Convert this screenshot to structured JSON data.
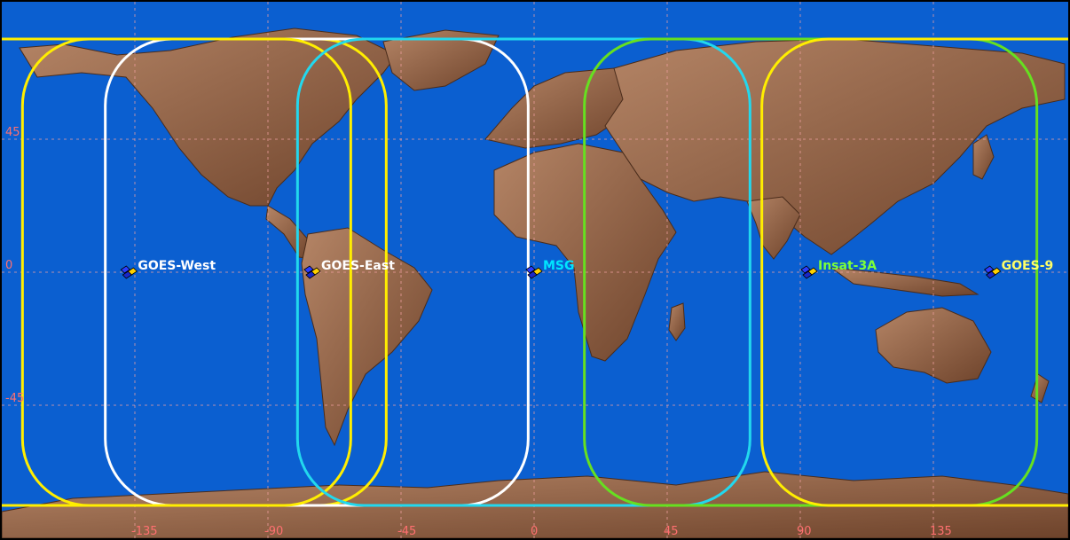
{
  "map": {
    "colors": {
      "ocean": "#0b5fd0",
      "land": "#8a5a3c",
      "land_light": "#b08060",
      "grid": "#f0a0a0",
      "axis_label": "#ff7070"
    },
    "longitude_ticks": [
      {
        "value": -135,
        "label": "-135"
      },
      {
        "value": -90,
        "label": "-90"
      },
      {
        "value": -45,
        "label": "-45"
      },
      {
        "value": 0,
        "label": "0"
      },
      {
        "value": 45,
        "label": "45"
      },
      {
        "value": 90,
        "label": "90"
      },
      {
        "value": 135,
        "label": "135"
      }
    ],
    "latitude_ticks": [
      {
        "value": 45,
        "label": "45"
      },
      {
        "value": 0,
        "label": "0"
      },
      {
        "value": -45,
        "label": "-45"
      }
    ]
  },
  "satellites": [
    {
      "id": "goes-west",
      "name": "GOES-West",
      "lon": -137,
      "color": "#ffffff"
    },
    {
      "id": "goes-east",
      "name": "GOES-East",
      "lon": -75,
      "color": "#ffffff"
    },
    {
      "id": "msg",
      "name": "MSG",
      "lon": 0,
      "color": "#00e5ff"
    },
    {
      "id": "insat-3a",
      "name": "Insat-3A",
      "lon": 93,
      "color": "#7cff3a"
    },
    {
      "id": "goes-9",
      "name": "GOES-9",
      "lon": 155,
      "color": "#ffff66"
    }
  ],
  "coverage_footprints": [
    {
      "satellite": "goes-west-yellow",
      "color": "#ffee00",
      "lon_min": -205,
      "lon_max": -50
    },
    {
      "satellite": "goes-west-white",
      "color": "#ffffff",
      "lon_min": -145,
      "lon_max": -2
    },
    {
      "satellite": "goes-east",
      "color": "#ffee00",
      "lon_min": -173,
      "lon_max": -62
    },
    {
      "satellite": "msg",
      "color": "#22d8ee",
      "lon_min": -80,
      "lon_max": 73
    },
    {
      "satellite": "insat-3a",
      "color": "#66e020",
      "lon_min": 17,
      "lon_max": 170
    },
    {
      "satellite": "goes-9",
      "color": "#ffee00",
      "lon_min": 77,
      "lon_max": 230
    }
  ]
}
